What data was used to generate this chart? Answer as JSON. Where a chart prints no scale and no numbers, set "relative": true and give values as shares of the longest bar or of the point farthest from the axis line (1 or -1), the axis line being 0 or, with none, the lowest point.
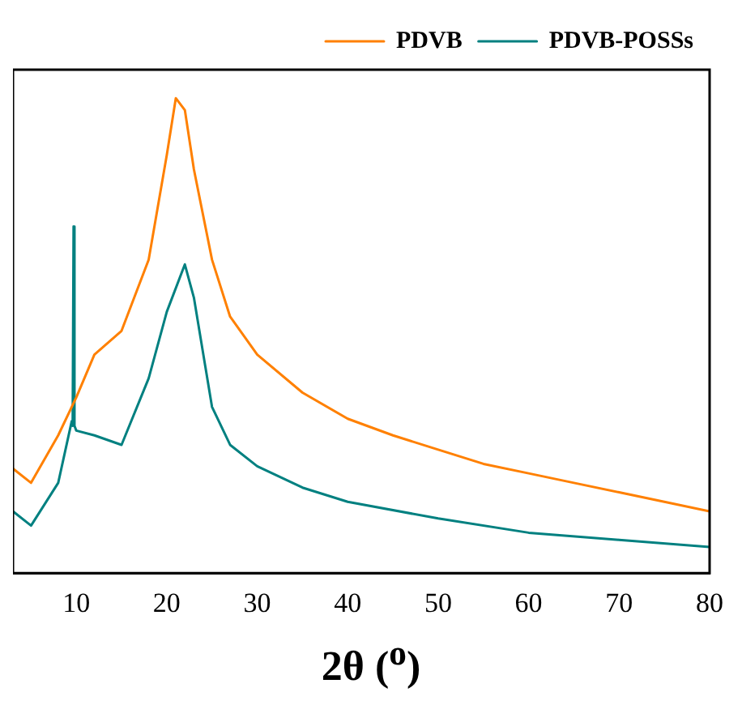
{
  "chart_data": {
    "type": "line",
    "relative": true,
    "xlabel": "2θ ($^{o}$)",
    "xlim": [
      3,
      80
    ],
    "xticks": [
      10,
      20,
      30,
      40,
      50,
      60,
      70,
      80
    ],
    "legend": "top right",
    "marker": "none",
    "line_style": "solid",
    "grid": false,
    "series": [
      {
        "name": "PDVB",
        "color": "#ff8000",
        "x": [
          3,
          5,
          8,
          10,
          12,
          15,
          18,
          20,
          21,
          22,
          23,
          25,
          27,
          30,
          35,
          40,
          45,
          50,
          55,
          60,
          65,
          70,
          75,
          80
        ],
        "values": [
          0.22,
          0.19,
          0.29,
          0.37,
          0.46,
          0.51,
          0.66,
          0.88,
          1.0,
          0.975,
          0.85,
          0.66,
          0.54,
          0.46,
          0.38,
          0.325,
          0.29,
          0.26,
          0.23,
          0.21,
          0.19,
          0.17,
          0.15,
          0.13
        ]
      },
      {
        "name": "PDVB-POSSs",
        "color": "#008080",
        "x": [
          3,
          5,
          8,
          9.5,
          9.6,
          9.7,
          9.8,
          10,
          12,
          15,
          18,
          20,
          22,
          23,
          25,
          27,
          30,
          35,
          40,
          50,
          60,
          70,
          80
        ],
        "values": [
          0.13,
          0.1,
          0.19,
          0.32,
          0.31,
          0.73,
          0.31,
          0.3,
          0.29,
          0.27,
          0.41,
          0.55,
          0.65,
          0.58,
          0.35,
          0.27,
          0.225,
          0.18,
          0.15,
          0.115,
          0.085,
          0.07,
          0.055
        ]
      }
    ]
  }
}
